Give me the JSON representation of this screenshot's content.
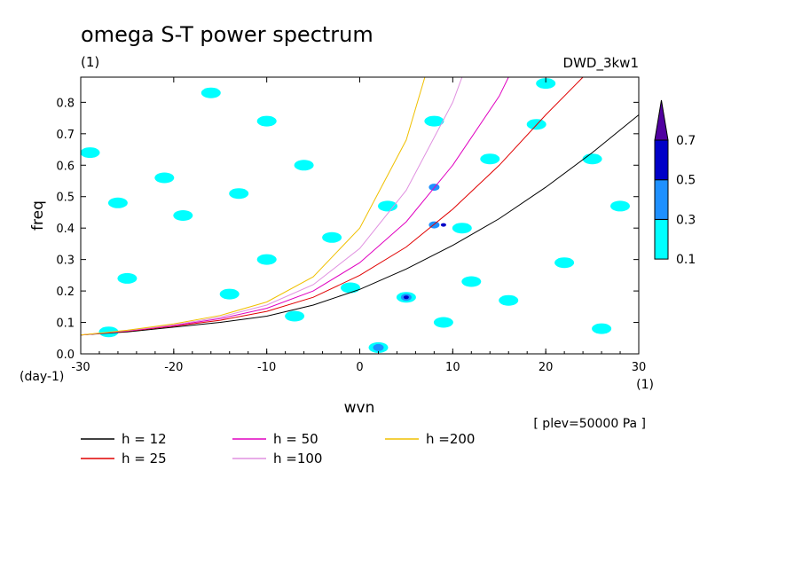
{
  "chart_data": {
    "type": "line",
    "title": "omega S-T power spectrum",
    "subtitle": "(1)",
    "dataset_label": "DWD_3kw1",
    "xlabel": "wvn",
    "x_unit": "(1)",
    "ylabel": "freq",
    "y_unit": "(day-1)",
    "annotation": "[ plev=50000 Pa ]",
    "xlim": [
      -30,
      30
    ],
    "ylim": [
      0,
      0.88
    ],
    "x_ticks": [
      -30,
      -20,
      -10,
      0,
      10,
      20,
      30
    ],
    "x_tick_labels": [
      "-30",
      "-20",
      "-10",
      "0",
      "10",
      "20",
      "30"
    ],
    "y_ticks": [
      0,
      0.1,
      0.2,
      0.3,
      0.4,
      0.5,
      0.6,
      0.7,
      0.8
    ],
    "y_tick_labels": [
      "0.0",
      "0.1",
      "0.2",
      "0.3",
      "0.4",
      "0.5",
      "0.6",
      "0.7",
      "0.8"
    ],
    "legend_position": "below-plot",
    "series": [
      {
        "name": "h = 12",
        "color": "#000000",
        "x": [
          -30,
          -25,
          -20,
          -15,
          -10,
          -5,
          0,
          5,
          10,
          15,
          20,
          25,
          30
        ],
        "y": [
          0.06,
          0.07,
          0.085,
          0.1,
          0.12,
          0.155,
          0.205,
          0.27,
          0.345,
          0.43,
          0.53,
          0.64,
          0.76
        ]
      },
      {
        "name": "h = 25",
        "color": "#e00000",
        "x": [
          -30,
          -25,
          -20,
          -15,
          -10,
          -5,
          0,
          5,
          10,
          15,
          20,
          24
        ],
        "y": [
          0.06,
          0.072,
          0.088,
          0.107,
          0.135,
          0.18,
          0.25,
          0.34,
          0.46,
          0.6,
          0.76,
          0.88
        ]
      },
      {
        "name": "h = 50",
        "color": "#e000c0",
        "x": [
          -30,
          -25,
          -20,
          -15,
          -10,
          -5,
          0,
          5,
          10,
          15,
          16
        ],
        "y": [
          0.06,
          0.073,
          0.09,
          0.112,
          0.145,
          0.2,
          0.29,
          0.42,
          0.6,
          0.82,
          0.88
        ]
      },
      {
        "name": "h =100",
        "color": "#e090e0",
        "x": [
          -30,
          -25,
          -20,
          -15,
          -10,
          -5,
          0,
          5,
          10,
          11
        ],
        "y": [
          0.06,
          0.074,
          0.092,
          0.117,
          0.155,
          0.22,
          0.335,
          0.52,
          0.8,
          0.88
        ]
      },
      {
        "name": "h =200",
        "color": "#f0c000",
        "x": [
          -30,
          -25,
          -20,
          -15,
          -10,
          -5,
          0,
          5,
          7
        ],
        "y": [
          0.06,
          0.075,
          0.095,
          0.122,
          0.165,
          0.245,
          0.4,
          0.68,
          0.88
        ]
      }
    ],
    "colorbar": {
      "levels": [
        "0.1",
        "0.3",
        "0.5",
        "0.7"
      ],
      "colors": [
        "#00ffff",
        "#1e90ff",
        "#0000c8",
        "#5000a0"
      ]
    },
    "shaded_regions": [
      {
        "level": "0.1",
        "x": -29,
        "y": 0.64
      },
      {
        "level": "0.1",
        "x": -26,
        "y": 0.48
      },
      {
        "level": "0.1",
        "x": -19,
        "y": 0.44
      },
      {
        "level": "0.1",
        "x": -13,
        "y": 0.51
      },
      {
        "level": "0.1",
        "x": -10,
        "y": 0.74
      },
      {
        "level": "0.1",
        "x": -6,
        "y": 0.6
      },
      {
        "level": "0.1",
        "x": -3,
        "y": 0.37
      },
      {
        "level": "0.1",
        "x": 3,
        "y": 0.47
      },
      {
        "level": "0.1",
        "x": 8,
        "y": 0.74
      },
      {
        "level": "0.1",
        "x": 11,
        "y": 0.4
      },
      {
        "level": "0.1",
        "x": 14,
        "y": 0.62
      },
      {
        "level": "0.1",
        "x": 19,
        "y": 0.73
      },
      {
        "level": "0.1",
        "x": 25,
        "y": 0.62
      },
      {
        "level": "0.1",
        "x": 28,
        "y": 0.47
      },
      {
        "level": "0.1",
        "x": -25,
        "y": 0.24
      },
      {
        "level": "0.1",
        "x": -14,
        "y": 0.19
      },
      {
        "level": "0.1",
        "x": -10,
        "y": 0.3
      },
      {
        "level": "0.1",
        "x": -7,
        "y": 0.12
      },
      {
        "level": "0.1",
        "x": 5,
        "y": 0.18
      },
      {
        "level": "0.1",
        "x": 12,
        "y": 0.23
      },
      {
        "level": "0.1",
        "x": 16,
        "y": 0.17
      },
      {
        "level": "0.1",
        "x": 22,
        "y": 0.29
      },
      {
        "level": "0.1",
        "x": 26,
        "y": 0.08
      },
      {
        "level": "0.1",
        "x": -27,
        "y": 0.07
      },
      {
        "level": "0.1",
        "x": -16,
        "y": 0.83
      },
      {
        "level": "0.1",
        "x": 20,
        "y": 0.86
      },
      {
        "level": "0.1",
        "x": -21,
        "y": 0.56
      },
      {
        "level": "0.1",
        "x": 2,
        "y": 0.02
      },
      {
        "level": "0.1",
        "x": 9,
        "y": 0.1
      },
      {
        "level": "0.1",
        "x": -1,
        "y": 0.21
      },
      {
        "level": "0.3",
        "x": 8,
        "y": 0.41
      },
      {
        "level": "0.3",
        "x": 5,
        "y": 0.18
      },
      {
        "level": "0.3",
        "x": 8,
        "y": 0.53
      },
      {
        "level": "0.3",
        "x": 2,
        "y": 0.02
      },
      {
        "level": "0.5",
        "x": 5,
        "y": 0.18
      },
      {
        "level": "0.5",
        "x": 9,
        "y": 0.41
      }
    ]
  }
}
